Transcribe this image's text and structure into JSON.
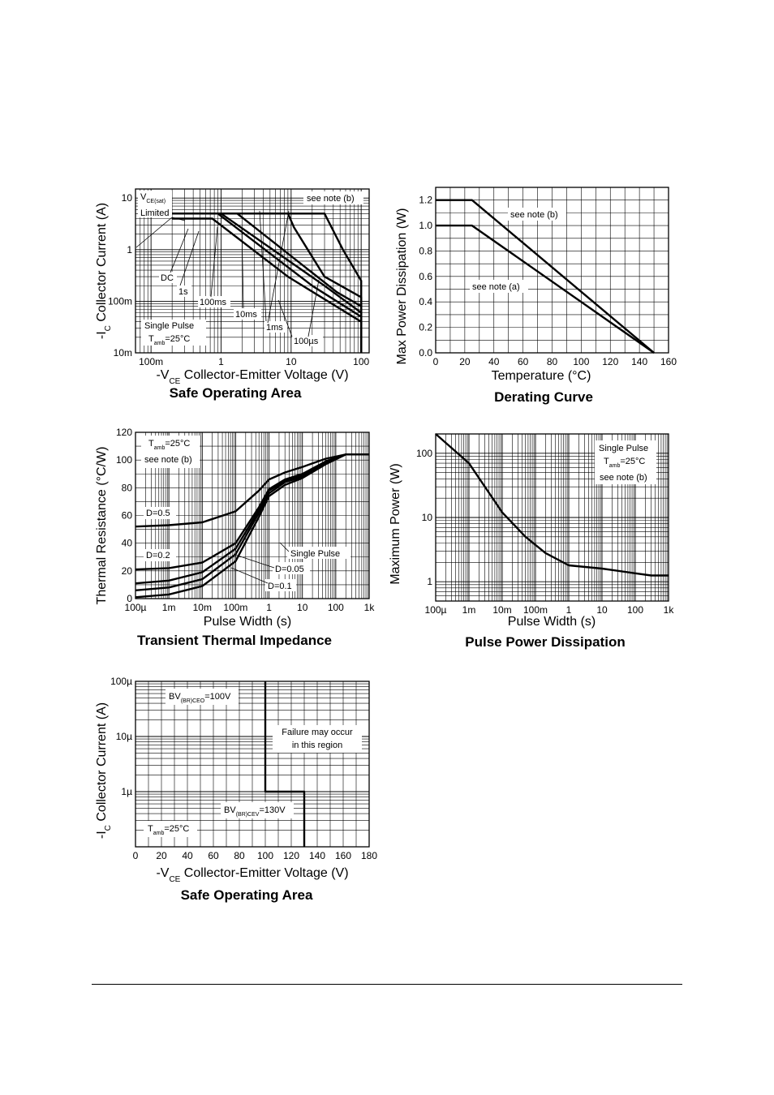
{
  "chart_data": [
    {
      "id": "soa1",
      "type": "line",
      "title": "Safe Operating Area",
      "xlabel": "-V|CE| Collector-Emitter Voltage (V)",
      "ylabel": "-I|C| Collector Current (A)",
      "xscale": "log",
      "yscale": "log",
      "xlim": [
        0.06,
        130
      ],
      "ylim": [
        0.01,
        15
      ],
      "grid": true,
      "xticks": [
        {
          "v": 0.1,
          "t": "100m"
        },
        {
          "v": 1,
          "t": "1"
        },
        {
          "v": 10,
          "t": "10"
        },
        {
          "v": 100,
          "t": "100"
        }
      ],
      "yticks": [
        {
          "v": 0.01,
          "t": "10m"
        },
        {
          "v": 0.1,
          "t": "100m"
        },
        {
          "v": 1,
          "t": "1"
        },
        {
          "v": 10,
          "t": "10"
        }
      ],
      "series": [
        {
          "name": "DC",
          "points": [
            [
              0.2,
              4
            ],
            [
              0.75,
              4
            ],
            [
              9,
              0.3
            ],
            [
              100,
              0.04
            ],
            [
              100,
              0.01
            ]
          ]
        },
        {
          "name": "1s",
          "points": [
            [
              0.2,
              5
            ],
            [
              0.9,
              5
            ],
            [
              20,
              0.2
            ],
            [
              100,
              0.05
            ],
            [
              100,
              0.01
            ]
          ]
        },
        {
          "name": "100ms",
          "points": [
            [
              0.2,
              5
            ],
            [
              1,
              5
            ],
            [
              30,
              0.2
            ],
            [
              100,
              0.06
            ],
            [
              100,
              0.01
            ]
          ]
        },
        {
          "name": "10ms",
          "points": [
            [
              0.2,
              5
            ],
            [
              1.7,
              5
            ],
            [
              45,
              0.15
            ],
            [
              100,
              0.08
            ],
            [
              100,
              0.01
            ]
          ]
        },
        {
          "name": "1ms",
          "points": [
            [
              0.3,
              5
            ],
            [
              9,
              5
            ],
            [
              11,
              2.7
            ],
            [
              30,
              0.3
            ],
            [
              100,
              0.12
            ],
            [
              100,
              0.01
            ]
          ]
        },
        {
          "name": "100µs",
          "points": [
            [
              0.6,
              5
            ],
            [
              30,
              5
            ],
            [
              55,
              1
            ],
            [
              100,
              0.25
            ],
            [
              100,
              0.01
            ]
          ]
        }
      ],
      "annotations": [
        {
          "text": "V",
          "sub": "CE(sat)",
          "line2": "Limited"
        },
        {
          "text": "see note (b)"
        },
        {
          "text": "DC"
        },
        {
          "text": "1s"
        },
        {
          "text": "100ms"
        },
        {
          "text": "10ms"
        },
        {
          "text": "1ms"
        },
        {
          "text": "100µs"
        },
        {
          "text": "Single Pulse"
        },
        {
          "text": "T",
          "sub": "amb",
          "after": "=25°C"
        }
      ]
    },
    {
      "id": "derating",
      "type": "line",
      "title": "Derating Curve",
      "xlabel": "Temperature (°C)",
      "ylabel": "Max Power Dissipation (W)",
      "xscale": "linear",
      "yscale": "linear",
      "xlim": [
        0,
        160
      ],
      "ylim": [
        0,
        1.3
      ],
      "grid": true,
      "xticks": [
        {
          "v": 0,
          "t": "0"
        },
        {
          "v": 20,
          "t": "20"
        },
        {
          "v": 40,
          "t": "40"
        },
        {
          "v": 60,
          "t": "60"
        },
        {
          "v": 80,
          "t": "80"
        },
        {
          "v": 100,
          "t": "100"
        },
        {
          "v": 120,
          "t": "120"
        },
        {
          "v": 140,
          "t": "140"
        },
        {
          "v": 160,
          "t": "160"
        }
      ],
      "yticks": [
        {
          "v": 0,
          "t": "0.0"
        },
        {
          "v": 0.2,
          "t": "0.2"
        },
        {
          "v": 0.4,
          "t": "0.4"
        },
        {
          "v": 0.6,
          "t": "0.6"
        },
        {
          "v": 0.8,
          "t": "0.8"
        },
        {
          "v": 1.0,
          "t": "1.0"
        },
        {
          "v": 1.2,
          "t": "1.2"
        }
      ],
      "series": [
        {
          "name": "see note (b)",
          "points": [
            [
              0,
              1.2
            ],
            [
              25,
              1.2
            ],
            [
              150,
              0
            ]
          ]
        },
        {
          "name": "see note (a)",
          "points": [
            [
              0,
              1.0
            ],
            [
              25,
              1.0
            ],
            [
              150,
              0
            ]
          ]
        }
      ],
      "annotations": [
        {
          "text": "see note (b)"
        },
        {
          "text": "see note (a)"
        }
      ]
    },
    {
      "id": "thermal",
      "type": "line",
      "title": "Transient Thermal Impedance",
      "xlabel": "Pulse Width (s)",
      "ylabel": "Thermal Resistance (°C/W)",
      "xscale": "log",
      "yscale": "linear",
      "xlim": [
        0.0001,
        1000
      ],
      "ylim": [
        0,
        120
      ],
      "grid": true,
      "xticks": [
        {
          "v": 0.0001,
          "t": "100µ"
        },
        {
          "v": 0.001,
          "t": "1m"
        },
        {
          "v": 0.01,
          "t": "10m"
        },
        {
          "v": 0.1,
          "t": "100m"
        },
        {
          "v": 1,
          "t": "1"
        },
        {
          "v": 10,
          "t": "10"
        },
        {
          "v": 100,
          "t": "100"
        },
        {
          "v": 1000,
          "t": "1k"
        }
      ],
      "yticks": [
        {
          "v": 0,
          "t": "0"
        },
        {
          "v": 20,
          "t": "20"
        },
        {
          "v": 40,
          "t": "40"
        },
        {
          "v": 60,
          "t": "60"
        },
        {
          "v": 80,
          "t": "80"
        },
        {
          "v": 100,
          "t": "100"
        },
        {
          "v": 120,
          "t": "120"
        }
      ],
      "series": [
        {
          "name": "D=0.5",
          "points": [
            [
              0.0001,
              52
            ],
            [
              0.001,
              53
            ],
            [
              0.01,
              55
            ],
            [
              0.1,
              63
            ],
            [
              0.5,
              78
            ],
            [
              1,
              86
            ],
            [
              3,
              91
            ],
            [
              10,
              95
            ],
            [
              50,
              101
            ],
            [
              200,
              104
            ],
            [
              1000,
              104
            ]
          ]
        },
        {
          "name": "D=0.2",
          "points": [
            [
              0.0001,
              21
            ],
            [
              0.001,
              22
            ],
            [
              0.01,
              26
            ],
            [
              0.1,
              40
            ],
            [
              0.5,
              66
            ],
            [
              1,
              79
            ],
            [
              3,
              86
            ],
            [
              10,
              90
            ],
            [
              50,
              99
            ],
            [
              200,
              104
            ],
            [
              1000,
              104
            ]
          ]
        },
        {
          "name": "D=0.1",
          "points": [
            [
              0.0001,
              11
            ],
            [
              0.001,
              13
            ],
            [
              0.01,
              19
            ],
            [
              0.1,
              36
            ],
            [
              0.5,
              64
            ],
            [
              1,
              78
            ],
            [
              3,
              85
            ],
            [
              10,
              89
            ],
            [
              50,
              99
            ],
            [
              200,
              104
            ],
            [
              1000,
              104
            ]
          ]
        },
        {
          "name": "D=0.05",
          "points": [
            [
              0.0001,
              6
            ],
            [
              0.001,
              8
            ],
            [
              0.01,
              14
            ],
            [
              0.1,
              32
            ],
            [
              0.5,
              62
            ],
            [
              1,
              76
            ],
            [
              3,
              84
            ],
            [
              10,
              88
            ],
            [
              50,
              98
            ],
            [
              200,
              104
            ],
            [
              1000,
              104
            ]
          ]
        },
        {
          "name": "Single Pulse",
          "points": [
            [
              0.0001,
              1
            ],
            [
              0.001,
              3
            ],
            [
              0.01,
              9
            ],
            [
              0.1,
              27
            ],
            [
              0.5,
              59
            ],
            [
              1,
              74
            ],
            [
              3,
              82
            ],
            [
              10,
              87
            ],
            [
              50,
              97
            ],
            [
              200,
              104
            ],
            [
              1000,
              104
            ]
          ]
        }
      ],
      "annotations": [
        {
          "text": "T",
          "sub": "amb",
          "after": "=25°C"
        },
        {
          "text": "see note (b)"
        },
        {
          "text": "D=0.5"
        },
        {
          "text": "D=0.2"
        },
        {
          "text": "Single Pulse"
        },
        {
          "text": "D=0.05"
        },
        {
          "text": "D=0.1"
        }
      ]
    },
    {
      "id": "pulse",
      "type": "line",
      "title": "Pulse Power Dissipation",
      "xlabel": "Pulse Width (s)",
      "ylabel": "Maximum Power (W)",
      "xscale": "log",
      "yscale": "log",
      "xlim": [
        0.0001,
        1000
      ],
      "ylim": [
        0.5,
        200
      ],
      "grid": true,
      "xticks": [
        {
          "v": 0.0001,
          "t": "100µ"
        },
        {
          "v": 0.001,
          "t": "1m"
        },
        {
          "v": 0.01,
          "t": "10m"
        },
        {
          "v": 0.1,
          "t": "100m"
        },
        {
          "v": 1,
          "t": "1"
        },
        {
          "v": 10,
          "t": "10"
        },
        {
          "v": 100,
          "t": "100"
        },
        {
          "v": 1000,
          "t": "1k"
        }
      ],
      "yticks": [
        {
          "v": 1,
          "t": "1"
        },
        {
          "v": 10,
          "t": "10"
        },
        {
          "v": 100,
          "t": "100"
        }
      ],
      "series": [
        {
          "name": "Single Pulse",
          "points": [
            [
              0.0001,
              200
            ],
            [
              0.001,
              70
            ],
            [
              0.01,
              12
            ],
            [
              0.05,
              5
            ],
            [
              0.2,
              2.8
            ],
            [
              1,
              1.8
            ],
            [
              10,
              1.6
            ],
            [
              100,
              1.35
            ],
            [
              300,
              1.25
            ],
            [
              1000,
              1.25
            ]
          ]
        }
      ],
      "annotations": [
        {
          "text": "Single Pulse"
        },
        {
          "text": "T",
          "sub": "amb",
          "after": "=25°C"
        },
        {
          "text": "see note (b)"
        }
      ]
    },
    {
      "id": "soa2",
      "type": "line",
      "title": "Safe Operating Area",
      "xlabel": "-V|CE| Collector-Emitter Voltage (V)",
      "ylabel": "-I|C| Collector Current (A)",
      "xscale": "linear",
      "yscale": "log",
      "xlim": [
        0,
        180
      ],
      "ylim": [
        1e-07,
        0.0001
      ],
      "grid": true,
      "xticks": [
        {
          "v": 0,
          "t": "0"
        },
        {
          "v": 20,
          "t": "20"
        },
        {
          "v": 40,
          "t": "40"
        },
        {
          "v": 60,
          "t": "60"
        },
        {
          "v": 80,
          "t": "80"
        },
        {
          "v": 100,
          "t": "100"
        },
        {
          "v": 120,
          "t": "120"
        },
        {
          "v": 140,
          "t": "140"
        },
        {
          "v": 160,
          "t": "160"
        },
        {
          "v": 180,
          "t": "180"
        }
      ],
      "yticks": [
        {
          "v": 1e-06,
          "t": "1µ"
        },
        {
          "v": 1e-05,
          "t": "10µ"
        },
        {
          "v": 0.0001,
          "t": "100µ"
        }
      ],
      "series": [
        {
          "name": "boundary",
          "points": [
            [
              100,
              0.0001
            ],
            [
              100,
              1e-06
            ],
            [
              130,
              1e-06
            ],
            [
              130,
              1e-07
            ]
          ]
        }
      ],
      "annotations": [
        {
          "text": "BV",
          "sub": "(BR)CEO",
          "after": "=100V"
        },
        {
          "text": "Failure may occur",
          "line2": "in this region"
        },
        {
          "text": "BV",
          "sub": "(BR)CEV",
          "after": "=130V"
        },
        {
          "text": "T",
          "sub": "amb",
          "after": "=25°C"
        }
      ]
    }
  ]
}
